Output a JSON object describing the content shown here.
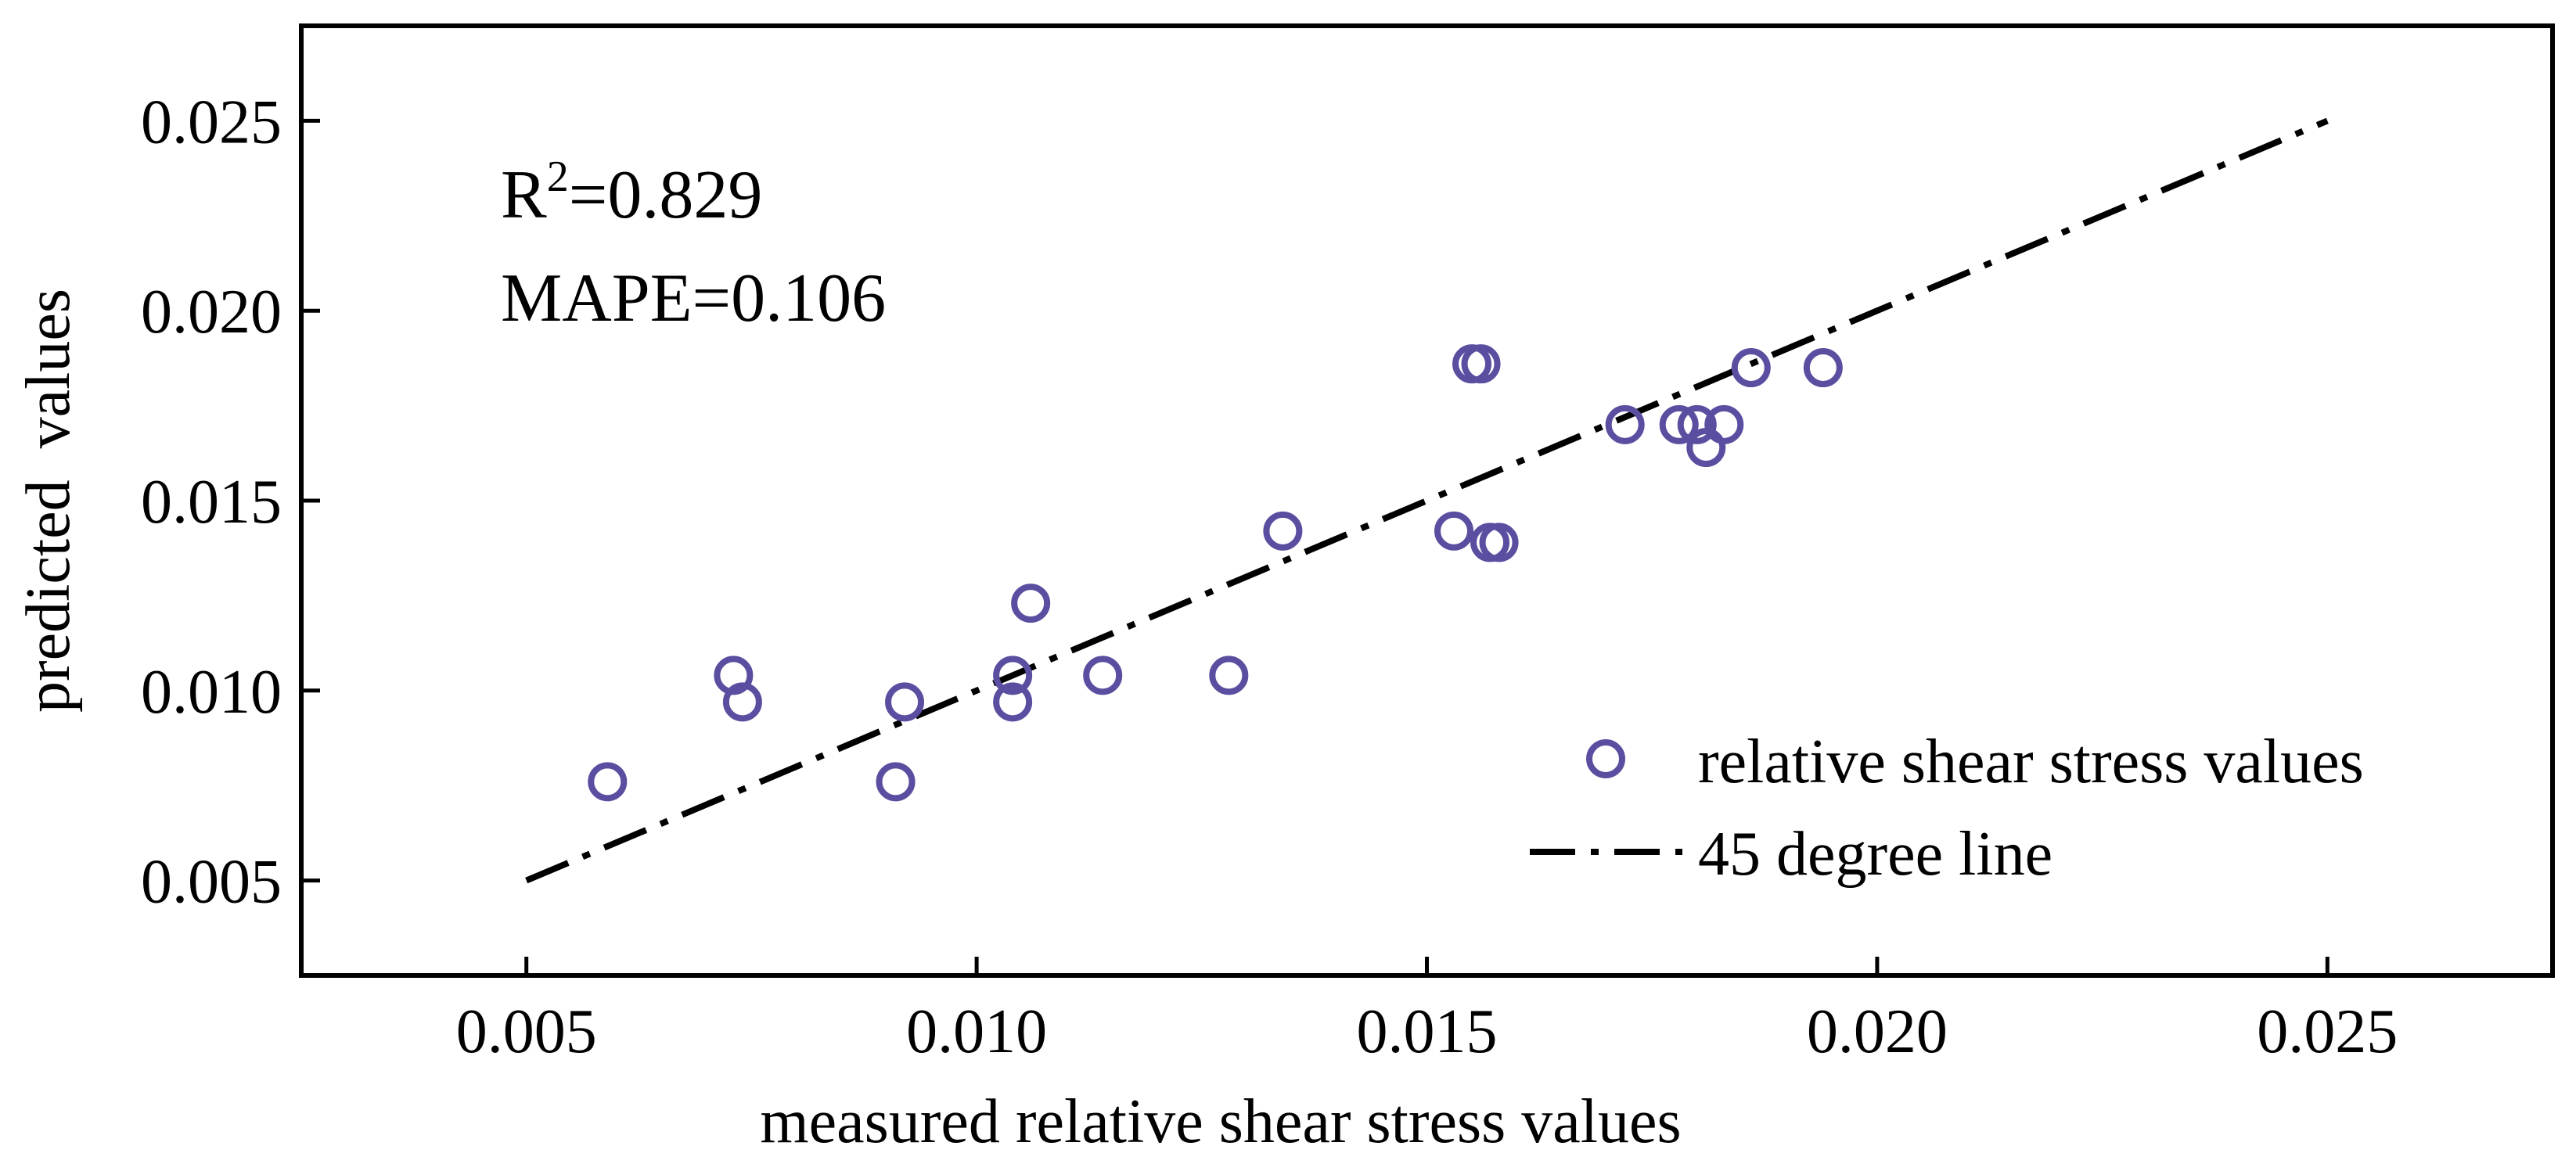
{
  "chart_data": {
    "type": "scatter",
    "title": "",
    "xlabel": "measured relative shear stress values",
    "ylabel": "predicted  values",
    "xlim": [
      0.0025,
      0.0275
    ],
    "ylim": [
      0.0025,
      0.0275
    ],
    "xticks": [
      0.005,
      0.01,
      0.015,
      0.02,
      0.025
    ],
    "xtick_labels": [
      "0.005",
      "0.010",
      "0.015",
      "0.020",
      "0.025"
    ],
    "yticks": [
      0.005,
      0.01,
      0.015,
      0.02,
      0.025
    ],
    "ytick_labels": [
      "0.005",
      "0.010",
      "0.015",
      "0.020",
      "0.025"
    ],
    "grid": false,
    "legend_position": "bottom-right",
    "annotations": {
      "r2_prefix": "R",
      "r2_superscript": "2",
      "r2_value": "=0.829",
      "mape": "MAPE=0.106"
    },
    "series": [
      {
        "name": "relative shear stress values",
        "kind": "scatter",
        "marker": "open-circle",
        "color": "#5a4ea0",
        "points": [
          {
            "x": 0.0059,
            "y": 0.0076
          },
          {
            "x": 0.0073,
            "y": 0.0104
          },
          {
            "x": 0.0074,
            "y": 0.0097
          },
          {
            "x": 0.0091,
            "y": 0.0076
          },
          {
            "x": 0.0092,
            "y": 0.0097
          },
          {
            "x": 0.0104,
            "y": 0.0104
          },
          {
            "x": 0.0104,
            "y": 0.0097
          },
          {
            "x": 0.0106,
            "y": 0.0123
          },
          {
            "x": 0.0114,
            "y": 0.0104
          },
          {
            "x": 0.0128,
            "y": 0.0104
          },
          {
            "x": 0.0134,
            "y": 0.0142
          },
          {
            "x": 0.0153,
            "y": 0.0142
          },
          {
            "x": 0.0155,
            "y": 0.0186
          },
          {
            "x": 0.0156,
            "y": 0.0186
          },
          {
            "x": 0.0157,
            "y": 0.0139
          },
          {
            "x": 0.0158,
            "y": 0.0139
          },
          {
            "x": 0.0172,
            "y": 0.017
          },
          {
            "x": 0.0178,
            "y": 0.017
          },
          {
            "x": 0.018,
            "y": 0.017
          },
          {
            "x": 0.0181,
            "y": 0.0164
          },
          {
            "x": 0.0183,
            "y": 0.017
          },
          {
            "x": 0.0186,
            "y": 0.0185
          },
          {
            "x": 0.0194,
            "y": 0.0185
          }
        ]
      },
      {
        "name": "45 degree line",
        "kind": "line",
        "style": "dash-dot",
        "color": "#000000",
        "points": [
          {
            "x": 0.005,
            "y": 0.005
          },
          {
            "x": 0.025,
            "y": 0.025
          }
        ]
      }
    ]
  }
}
